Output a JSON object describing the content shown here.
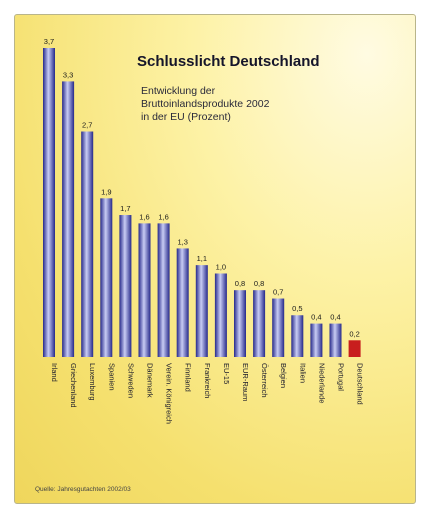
{
  "header": {
    "title": "Schlusslicht Deutschland",
    "subtitle_lines": [
      "Entwicklung der",
      "Bruttoinlandsprodukte 2002",
      "in der EU (Prozent)"
    ]
  },
  "footer": {
    "source": "Quelle: Jahresgutachten 2002/03"
  },
  "colors": {
    "bar_dark": "#25288a",
    "bar_light": "#c8ccf4",
    "highlight": "#c81e1e",
    "highlight_text": "#c81e1e"
  },
  "chart_data": {
    "type": "bar",
    "title": "Schlusslicht Deutschland",
    "categories": [
      "Irland",
      "Griechenland",
      "Luxemburg",
      "Spanien",
      "Schweden",
      "Dänemark",
      "Verein. Königreich",
      "Finnland",
      "Frankreich",
      "EU-15",
      "EUR-Raum",
      "Österreich",
      "Belgien",
      "Italien",
      "Niederlande",
      "Portugal",
      "Deutschland"
    ],
    "value_labels": [
      "3,7",
      "3,3",
      "2,7",
      "1,9",
      "1,7",
      "1,6",
      "1,6",
      "1,3",
      "1,1",
      "1,0",
      "0,8",
      "0,8",
      "0,7",
      "0,5",
      "0,4",
      "0,4",
      "0,2"
    ],
    "values": [
      3.7,
      3.3,
      2.7,
      1.9,
      1.7,
      1.6,
      1.6,
      1.3,
      1.1,
      1.0,
      0.8,
      0.8,
      0.7,
      0.5,
      0.4,
      0.4,
      0.2
    ],
    "highlight": "Deutschland",
    "xlabel": "",
    "ylabel": "",
    "ylim": [
      0,
      3.7
    ],
    "grid": false,
    "legend": "none"
  }
}
